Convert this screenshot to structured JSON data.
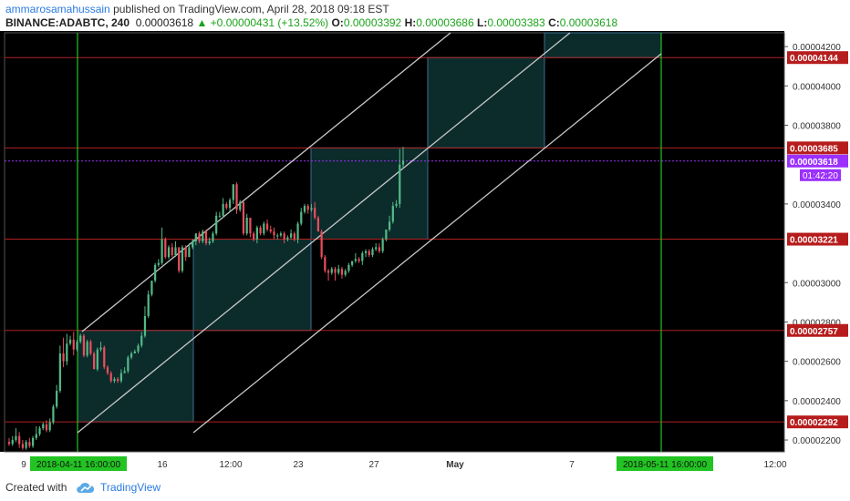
{
  "header": {
    "author": "ammarosamahussain",
    "published": "published on TradingView.com, April 28, 2018 09:18 EST",
    "symbol": "BINANCE:ADABTC, 240",
    "last": "0.00003618",
    "change": "+0.00000431 (+13.52%)",
    "o_label": "O:",
    "o_value": "0.00003392",
    "h_label": "H:",
    "h_value": "0.00003686",
    "l_label": "L:",
    "l_value": "0.00003383",
    "c_label": "C:",
    "c_value": "0.00003618"
  },
  "footer": {
    "created_with": "Created with",
    "brand": "TradingView"
  },
  "colors": {
    "background": "#000000",
    "up": "#53b987",
    "down": "#eb4d5c",
    "channel": "#c8c8c8",
    "hline": "#b02020",
    "vline": "#22c322",
    "box_fill": "#0c2b2b",
    "box_stroke": "#3c6e8c",
    "last_price": "#9b30ff"
  },
  "chart_data": {
    "type": "candlestick",
    "x_ticks": [
      "9",
      "16",
      "12:00",
      "23",
      "27",
      "May",
      "7",
      "4",
      "12:00"
    ],
    "y_ticks": [
      "0.00004200",
      "0.00004000",
      "0.00003800",
      "0.00003400",
      "0.00003000",
      "0.00002800",
      "0.00002600",
      "0.00002400",
      "0.00002200"
    ],
    "ylim": [
      2.14e-05,
      4.27e-05
    ],
    "levels": [
      {
        "label": "0.00004144",
        "value": 4.144e-05
      },
      {
        "label": "0.00003685",
        "value": 3.685e-05
      },
      {
        "label": "0.00003221",
        "value": 3.221e-05
      },
      {
        "label": "0.00002757",
        "value": 2.757e-05
      },
      {
        "label": "0.00002292",
        "value": 2.292e-05
      }
    ],
    "last_price": {
      "label": "0.00003618",
      "countdown": "01:42:20",
      "value": 3.618e-05
    },
    "vertical_markers": [
      {
        "label": "2018-04-11 16:00:00"
      },
      {
        "label": "2018-05-11 16:00:00"
      }
    ],
    "candles": [
      [
        2.19e-05,
        2.18e-05,
        2.21e-05,
        2.17e-05
      ],
      [
        2.18e-05,
        2.2e-05,
        2.22e-05,
        2.17e-05
      ],
      [
        2.2e-05,
        2.22e-05,
        2.26e-05,
        2.19e-05
      ],
      [
        2.22e-05,
        2.18e-05,
        2.24e-05,
        2.16e-05
      ],
      [
        2.18e-05,
        2.16e-05,
        2.2e-05,
        2.15e-05
      ],
      [
        2.16e-05,
        2.19e-05,
        2.2e-05,
        2.15e-05
      ],
      [
        2.19e-05,
        2.17e-05,
        2.21e-05,
        2.16e-05
      ],
      [
        2.17e-05,
        2.21e-05,
        2.22e-05,
        2.16e-05
      ],
      [
        2.21e-05,
        2.23e-05,
        2.27e-05,
        2.2e-05
      ],
      [
        2.23e-05,
        2.26e-05,
        2.27e-05,
        2.22e-05
      ],
      [
        2.26e-05,
        2.28e-05,
        2.29e-05,
        2.25e-05
      ],
      [
        2.28e-05,
        2.25e-05,
        2.3e-05,
        2.24e-05
      ],
      [
        2.25e-05,
        2.29e-05,
        2.31e-05,
        2.24e-05
      ],
      [
        2.29e-05,
        2.37e-05,
        2.38e-05,
        2.28e-05
      ],
      [
        2.37e-05,
        2.45e-05,
        2.48e-05,
        2.36e-05
      ],
      [
        2.45e-05,
        2.64e-05,
        2.68e-05,
        2.44e-05
      ],
      [
        2.64e-05,
        2.6e-05,
        2.72e-05,
        2.57e-05
      ],
      [
        2.6e-05,
        2.69e-05,
        2.74e-05,
        2.58e-05
      ],
      [
        2.69e-05,
        2.71e-05,
        2.73e-05,
        2.68e-05
      ],
      [
        2.71e-05,
        2.66e-05,
        2.75e-05,
        2.63e-05
      ],
      [
        2.66e-05,
        2.7e-05,
        2.71e-05,
        2.65e-05
      ],
      [
        2.7e-05,
        2.73e-05,
        2.74e-05,
        2.69e-05
      ],
      [
        2.73e-05,
        2.63e-05,
        2.74e-05,
        2.62e-05
      ],
      [
        2.63e-05,
        2.7e-05,
        2.71e-05,
        2.62e-05
      ],
      [
        2.7e-05,
        2.64e-05,
        2.71e-05,
        2.63e-05
      ],
      [
        2.64e-05,
        2.56e-05,
        2.65e-05,
        2.56e-05
      ],
      [
        2.56e-05,
        2.66e-05,
        2.67e-05,
        2.55e-05
      ],
      [
        2.66e-05,
        2.67e-05,
        2.7e-05,
        2.65e-05
      ],
      [
        2.67e-05,
        2.57e-05,
        2.68e-05,
        2.56e-05
      ],
      [
        2.57e-05,
        2.54e-05,
        2.58e-05,
        2.53e-05
      ],
      [
        2.54e-05,
        2.5e-05,
        2.55e-05,
        2.49e-05
      ],
      [
        2.5e-05,
        2.51e-05,
        2.52e-05,
        2.49e-05
      ],
      [
        2.51e-05,
        2.5e-05,
        2.52e-05,
        2.49e-05
      ],
      [
        2.5e-05,
        2.54e-05,
        2.56e-05,
        2.49e-05
      ],
      [
        2.54e-05,
        2.55e-05,
        2.57e-05,
        2.54e-05
      ],
      [
        2.55e-05,
        2.62e-05,
        2.63e-05,
        2.54e-05
      ],
      [
        2.62e-05,
        2.64e-05,
        2.65e-05,
        2.61e-05
      ],
      [
        2.64e-05,
        2.65e-05,
        2.66e-05,
        2.64e-05
      ],
      [
        2.65e-05,
        2.68e-05,
        2.69e-05,
        2.64e-05
      ],
      [
        2.68e-05,
        2.73e-05,
        2.75e-05,
        2.67e-05
      ],
      [
        2.73e-05,
        2.83e-05,
        2.88e-05,
        2.72e-05
      ],
      [
        2.83e-05,
        2.94e-05,
        2.96e-05,
        2.82e-05
      ],
      [
        2.94e-05,
        3.01e-05,
        3.01e-05,
        2.93e-05
      ],
      [
        3.01e-05,
        3.09e-05,
        3.1e-05,
        3e-05
      ],
      [
        3.09e-05,
        3.1e-05,
        3.12e-05,
        3.08e-05
      ],
      [
        3.1e-05,
        3.22e-05,
        3.28e-05,
        3.09e-05
      ],
      [
        3.22e-05,
        3.13e-05,
        3.23e-05,
        3.12e-05
      ],
      [
        3.13e-05,
        3.18e-05,
        3.19e-05,
        3.12e-05
      ],
      [
        3.18e-05,
        3.14e-05,
        3.2e-05,
        3.13e-05
      ],
      [
        3.14e-05,
        3.18e-05,
        3.21e-05,
        3.13e-05
      ],
      [
        3.18e-05,
        3.06e-05,
        3.18e-05,
        3.05e-05
      ],
      [
        3.06e-05,
        3.18e-05,
        3.19e-05,
        3.05e-05
      ],
      [
        3.18e-05,
        3.13e-05,
        3.19e-05,
        3.11e-05
      ],
      [
        3.13e-05,
        3.18e-05,
        3.2e-05,
        3.13e-05
      ],
      [
        3.18e-05,
        3.21e-05,
        3.22e-05,
        3.17e-05
      ],
      [
        3.21e-05,
        3.25e-05,
        3.25e-05,
        3.19e-05
      ],
      [
        3.25e-05,
        3.21e-05,
        3.26e-05,
        3.2e-05
      ],
      [
        3.21e-05,
        3.26e-05,
        3.27e-05,
        3.2e-05
      ],
      [
        3.26e-05,
        3.2e-05,
        3.27e-05,
        3.19e-05
      ],
      [
        3.2e-05,
        3.21e-05,
        3.23e-05,
        3.19e-05
      ],
      [
        3.21e-05,
        3.25e-05,
        3.26e-05,
        3.2e-05
      ],
      [
        3.25e-05,
        3.34e-05,
        3.36e-05,
        3.24e-05
      ],
      [
        3.34e-05,
        3.34e-05,
        3.36e-05,
        3.33e-05
      ],
      [
        3.34e-05,
        3.4e-05,
        3.43e-05,
        3.33e-05
      ],
      [
        3.4e-05,
        3.38e-05,
        3.41e-05,
        3.37e-05
      ],
      [
        3.38e-05,
        3.42e-05,
        3.43e-05,
        3.36e-05
      ],
      [
        3.42e-05,
        3.5e-05,
        3.5e-05,
        3.4e-05
      ],
      [
        3.5e-05,
        3.37e-05,
        3.51e-05,
        3.35e-05
      ],
      [
        3.37e-05,
        3.41e-05,
        3.42e-05,
        3.36e-05
      ],
      [
        3.41e-05,
        3.25e-05,
        3.41e-05,
        3.24e-05
      ],
      [
        3.25e-05,
        3.33e-05,
        3.35e-05,
        3.24e-05
      ],
      [
        3.33e-05,
        3.25e-05,
        3.33e-05,
        3.23e-05
      ],
      [
        3.25e-05,
        3.22e-05,
        3.26e-05,
        3.21e-05
      ],
      [
        3.22e-05,
        3.28e-05,
        3.29e-05,
        3.2e-05
      ],
      [
        3.28e-05,
        3.25e-05,
        3.29e-05,
        3.24e-05
      ],
      [
        3.25e-05,
        3.3e-05,
        3.31e-05,
        3.24e-05
      ],
      [
        3.3e-05,
        3.27e-05,
        3.32e-05,
        3.26e-05
      ],
      [
        3.27e-05,
        3.26e-05,
        3.29e-05,
        3.25e-05
      ],
      [
        3.26e-05,
        3.24e-05,
        3.28e-05,
        3.22e-05
      ],
      [
        3.24e-05,
        3.24e-05,
        3.25e-05,
        3.22e-05
      ],
      [
        3.24e-05,
        3.25e-05,
        3.26e-05,
        3.23e-05
      ],
      [
        3.25e-05,
        3.22e-05,
        3.26e-05,
        3.2e-05
      ],
      [
        3.22e-05,
        3.23e-05,
        3.24e-05,
        3.21e-05
      ],
      [
        3.23e-05,
        3.25e-05,
        3.27e-05,
        3.22e-05
      ],
      [
        3.25e-05,
        3.22e-05,
        3.26e-05,
        3.21e-05
      ],
      [
        3.22e-05,
        3.3e-05,
        3.31e-05,
        3.2e-05
      ],
      [
        3.3e-05,
        3.36e-05,
        3.38e-05,
        3.29e-05
      ],
      [
        3.36e-05,
        3.39e-05,
        3.4e-05,
        3.35e-05
      ],
      [
        3.39e-05,
        3.37e-05,
        3.4e-05,
        3.35e-05
      ],
      [
        3.37e-05,
        3.38e-05,
        3.4e-05,
        3.36e-05
      ],
      [
        3.38e-05,
        3.33e-05,
        3.41e-05,
        3.32e-05
      ],
      [
        3.33e-05,
        3.26e-05,
        3.34e-05,
        3.26e-05
      ],
      [
        3.26e-05,
        3.13e-05,
        3.27e-05,
        3.12e-05
      ],
      [
        3.13e-05,
        3.06e-05,
        3.14e-05,
        3.05e-05
      ],
      [
        3.06e-05,
        3.05e-05,
        3.07e-05,
        3.01e-05
      ],
      [
        3.05e-05,
        3.07e-05,
        3.08e-05,
        3.04e-05
      ],
      [
        3.07e-05,
        3.05e-05,
        3.08e-05,
        3.01e-05
      ],
      [
        3.05e-05,
        3.07e-05,
        3.09e-05,
        3.04e-05
      ],
      [
        3.07e-05,
        3.04e-05,
        3.08e-05,
        3.02e-05
      ],
      [
        3.04e-05,
        3.06e-05,
        3.07e-05,
        3.03e-05
      ],
      [
        3.06e-05,
        3.09e-05,
        3.1e-05,
        3.05e-05
      ],
      [
        3.09e-05,
        3.11e-05,
        3.11e-05,
        3.08e-05
      ],
      [
        3.11e-05,
        3.12e-05,
        3.15e-05,
        3.1e-05
      ],
      [
        3.12e-05,
        3.11e-05,
        3.13e-05,
        3.1e-05
      ],
      [
        3.11e-05,
        3.15e-05,
        3.16e-05,
        3.09e-05
      ],
      [
        3.15e-05,
        3.16e-05,
        3.17e-05,
        3.13e-05
      ],
      [
        3.16e-05,
        3.14e-05,
        3.17e-05,
        3.13e-05
      ],
      [
        3.14e-05,
        3.17e-05,
        3.18e-05,
        3.13e-05
      ],
      [
        3.17e-05,
        3.18e-05,
        3.2e-05,
        3.16e-05
      ],
      [
        3.18e-05,
        3.16e-05,
        3.2e-05,
        3.15e-05
      ],
      [
        3.16e-05,
        3.22e-05,
        3.23e-05,
        3.15e-05
      ],
      [
        3.22e-05,
        3.27e-05,
        3.27e-05,
        3.21e-05
      ],
      [
        3.27e-05,
        3.31e-05,
        3.34e-05,
        3.26e-05
      ],
      [
        3.31e-05,
        3.39e-05,
        3.41e-05,
        3.3e-05
      ],
      [
        3.39e-05,
        3.4e-05,
        3.42e-05,
        3.38e-05
      ],
      [
        3.4e-05,
        3.6e-05,
        3.68e-05,
        3.38e-05
      ],
      [
        3.6e-05,
        3.62e-05,
        3.69e-05,
        3.58e-05
      ]
    ],
    "title": "",
    "xlabel": "",
    "ylabel": ""
  }
}
